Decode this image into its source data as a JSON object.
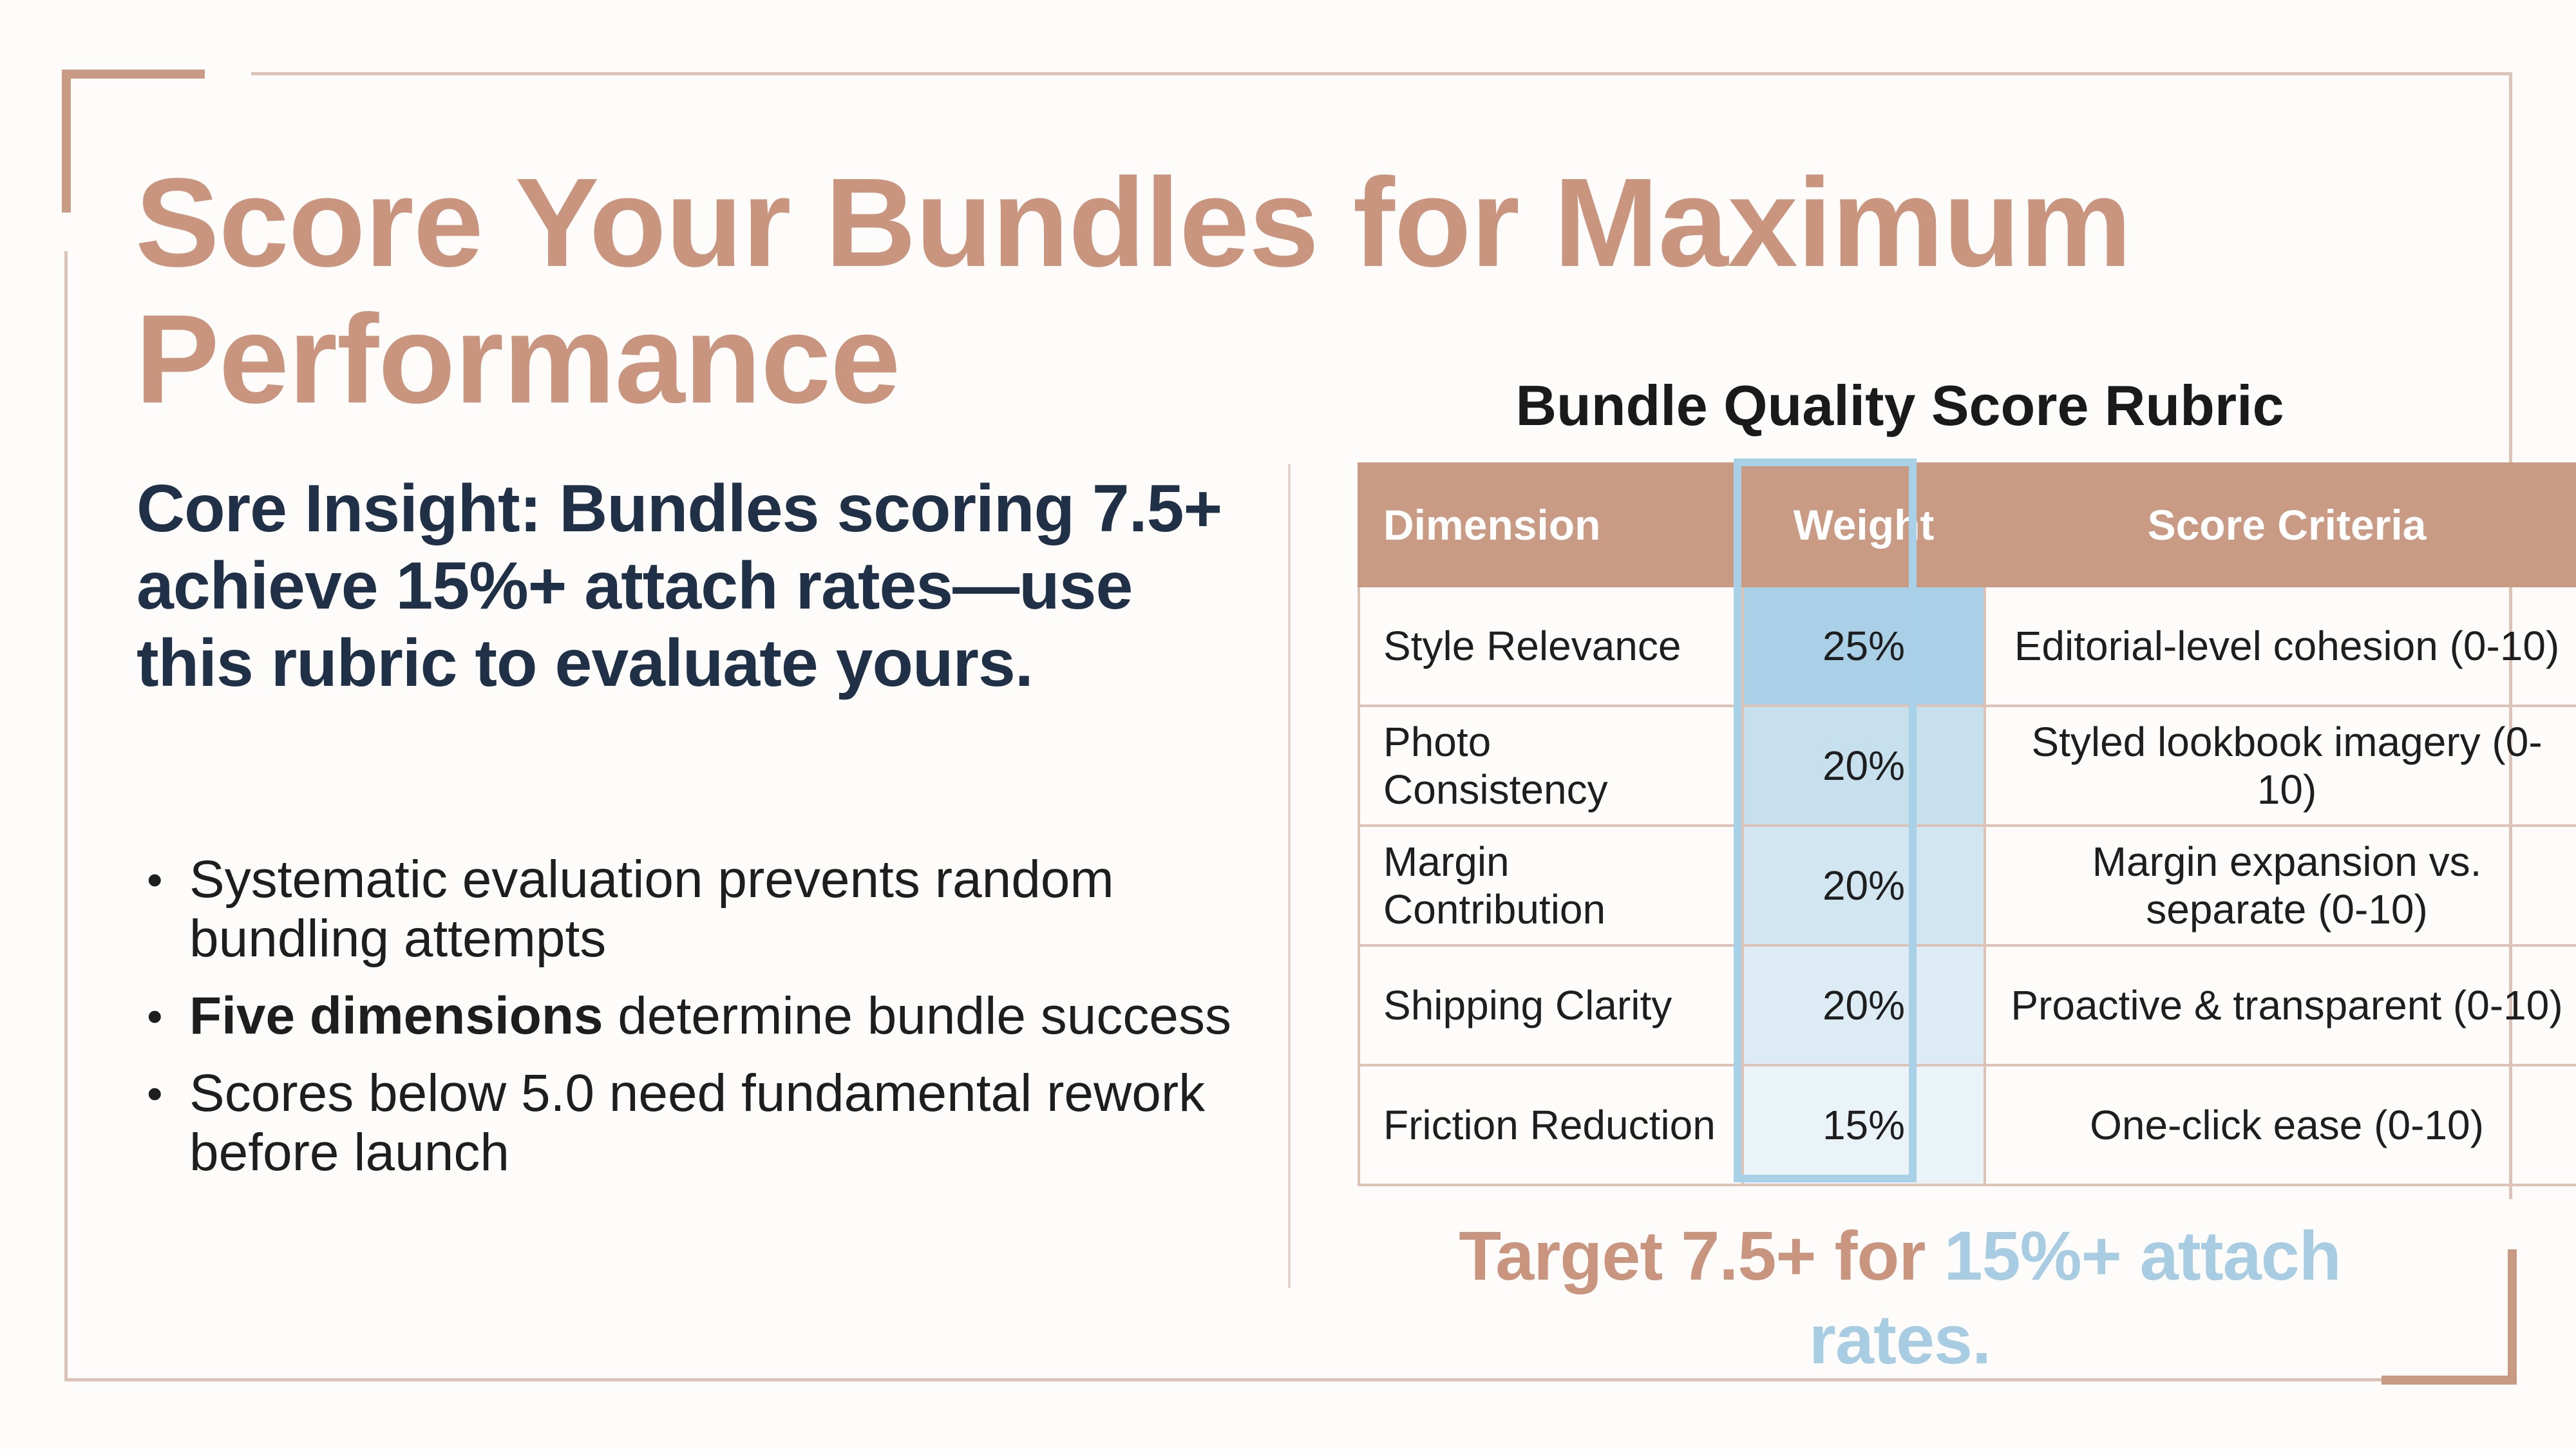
{
  "slide": {
    "title": "Score Your Bundles for Maximum Performance",
    "insight": "Core Insight: Bundles scoring 7.5+ achieve 15%+ attach rates—use this rubric to evaluate yours.",
    "bullets": [
      {
        "bold": "",
        "text": "Systematic evaluation prevents random bundling attempts"
      },
      {
        "bold": "Five dimensions",
        "text": " determine bundle success"
      },
      {
        "bold": "",
        "text": "Scores below 5.0 need fundamental rework before launch"
      }
    ]
  },
  "rubric": {
    "title": "Bundle Quality Score Rubric",
    "headers": {
      "dimension": "Dimension",
      "weight": "Weight",
      "criteria": "Score Criteria"
    },
    "rows": [
      {
        "dimension": "Style Relevance",
        "weight": "25%",
        "criteria": "Editorial-level cohesion (0-10)",
        "weight_fill": "#a9d0e6"
      },
      {
        "dimension": "Photo Consistency",
        "weight": "20%",
        "criteria": "Styled lookbook imagery (0-10)",
        "weight_fill": "#c6e0ee"
      },
      {
        "dimension": "Margin Contribution",
        "weight": "20%",
        "criteria": "Margin expansion vs. separate (0-10)",
        "weight_fill": "#d2e6f1"
      },
      {
        "dimension": "Shipping Clarity",
        "weight": "20%",
        "criteria": "Proactive & transparent (0-10)",
        "weight_fill": "#dcebf4"
      },
      {
        "dimension": "Friction Reduction",
        "weight": "15%",
        "criteria": "One-click ease (0-10)",
        "weight_fill": "#eaf3f8"
      }
    ]
  },
  "target": {
    "part1": "Target 7.5+ for ",
    "part2": "15%+ attach rates."
  },
  "colors": {
    "accent": "#c9957f",
    "navy": "#1f3047",
    "highlight": "#a8d0e6"
  }
}
